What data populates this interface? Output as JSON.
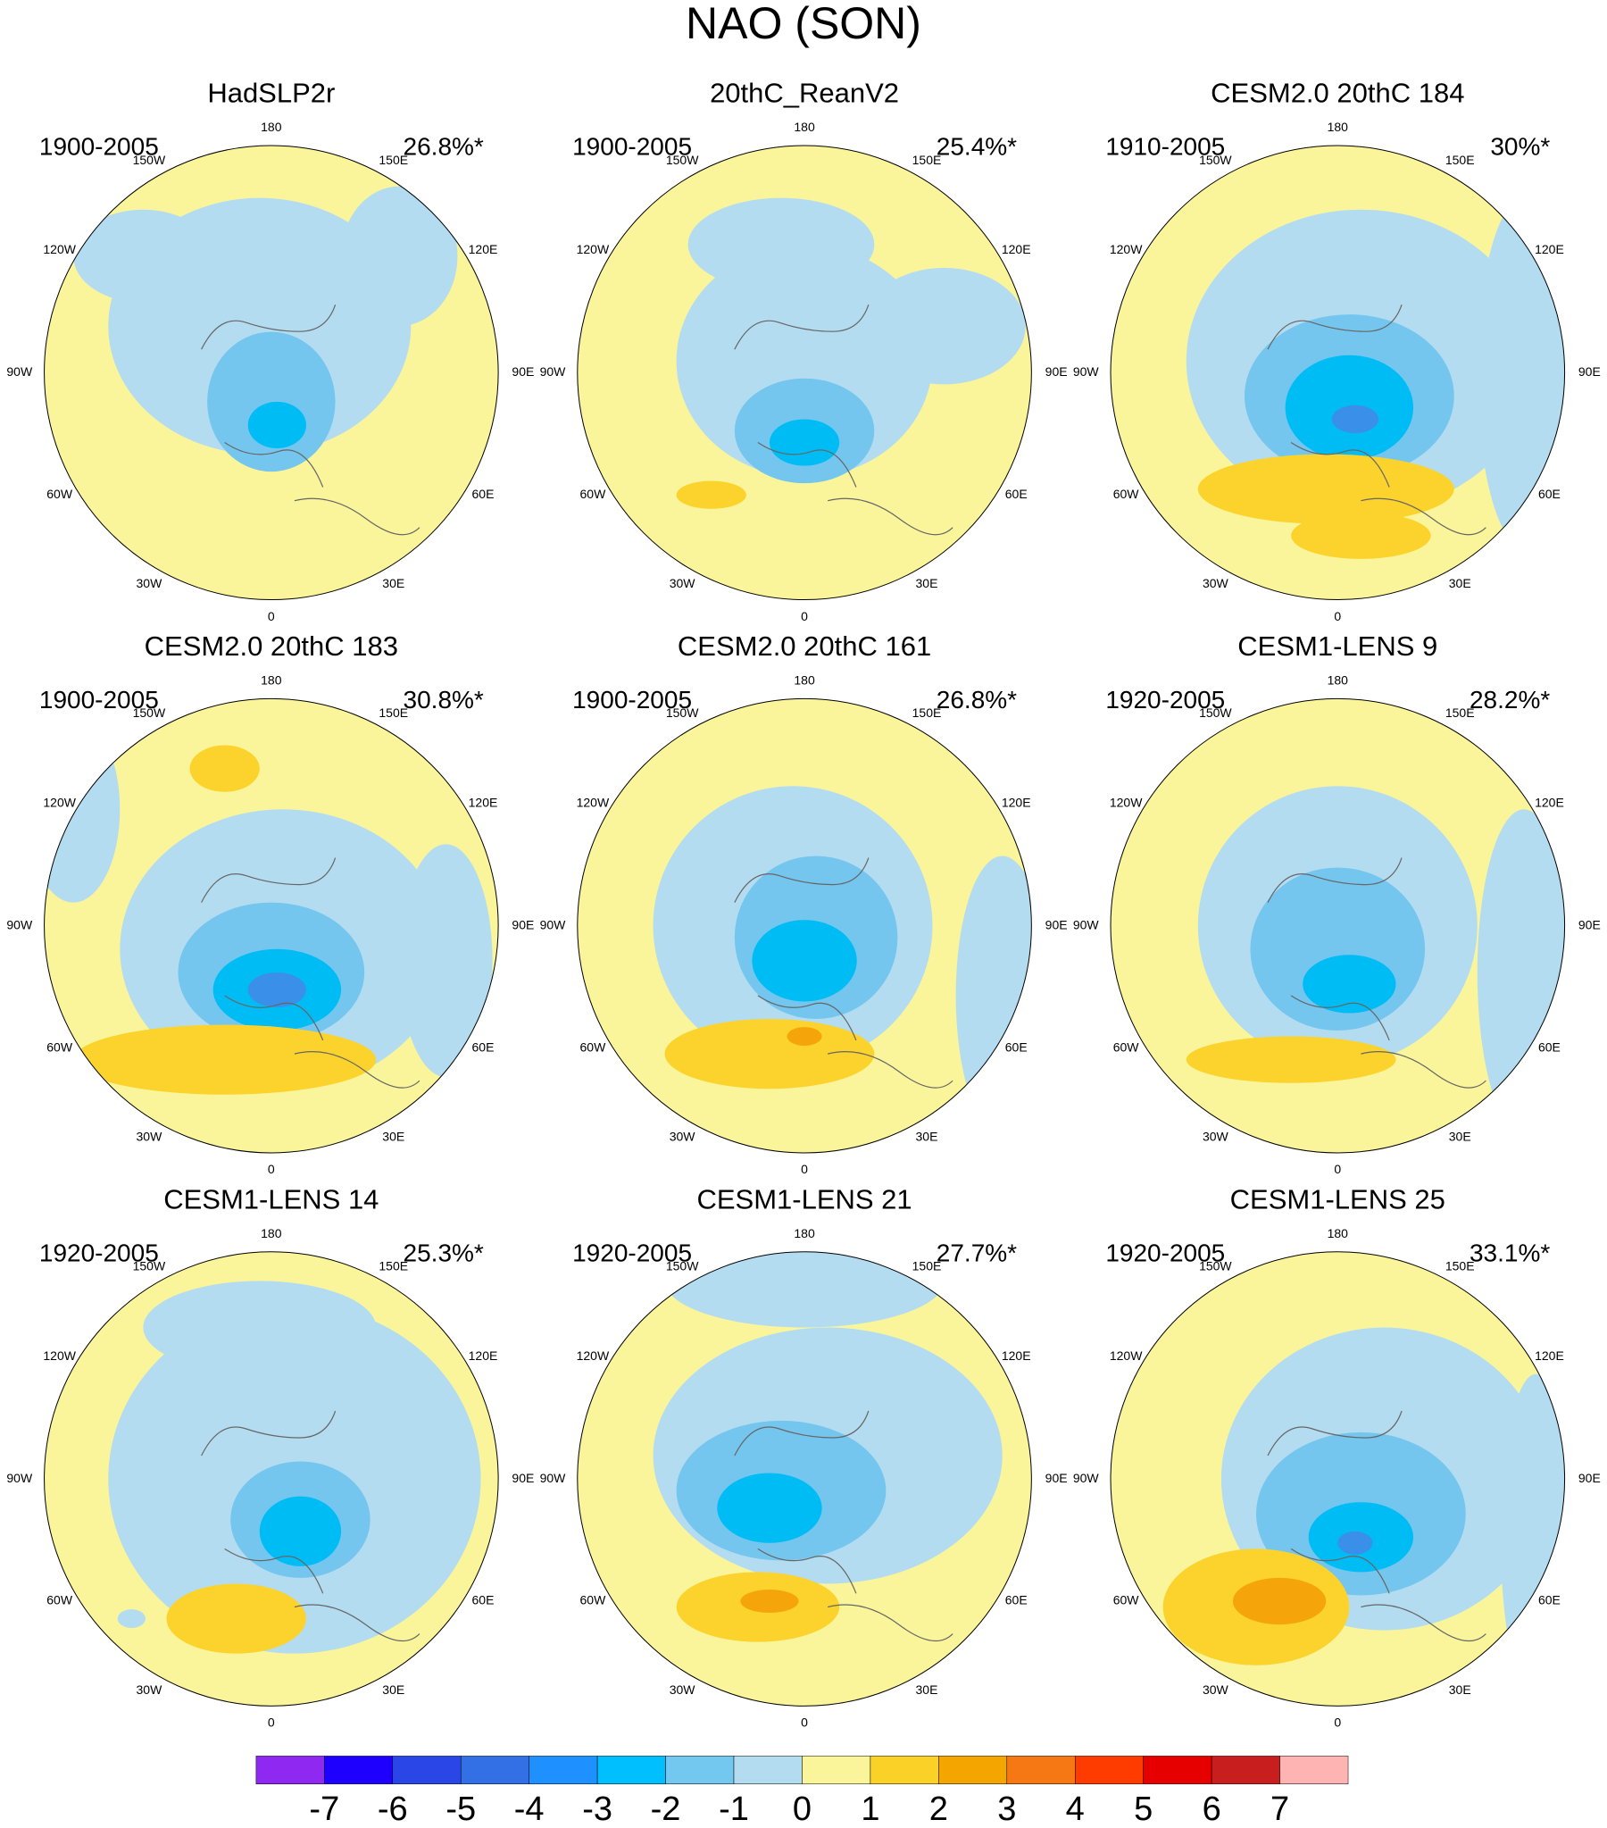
{
  "title": "NAO (SON)",
  "panels": [
    {
      "title": "HadSLP2r",
      "period": "1900-2005",
      "variance": "26.8%*"
    },
    {
      "title": "20thC_ReanV2",
      "period": "1900-2005",
      "variance": "25.4%*"
    },
    {
      "title": "CESM2.0 20thC 184",
      "period": "1910-2005",
      "variance": "30%*"
    },
    {
      "title": "CESM2.0 20thC 183",
      "period": "1900-2005",
      "variance": "30.8%*"
    },
    {
      "title": "CESM2.0 20thC 161",
      "period": "1900-2005",
      "variance": "26.8%*"
    },
    {
      "title": "CESM1-LENS 9",
      "period": "1920-2005",
      "variance": "28.2%*"
    },
    {
      "title": "CESM1-LENS 14",
      "period": "1920-2005",
      "variance": "25.3%*"
    },
    {
      "title": "CESM1-LENS 21",
      "period": "1920-2005",
      "variance": "27.7%*"
    },
    {
      "title": "CESM1-LENS 25",
      "period": "1920-2005",
      "variance": "33.1%*"
    }
  ],
  "longitude_labels": [
    "0",
    "30E",
    "60E",
    "90E",
    "120E",
    "150E",
    "180",
    "150W",
    "120W",
    "90W",
    "60W",
    "30W"
  ],
  "colorbar": {
    "levels": [
      -7,
      -6,
      -5,
      -4,
      -3,
      -2,
      -1,
      0,
      1,
      2,
      3,
      4,
      5,
      6,
      7
    ],
    "colors": [
      "#8f28f0",
      "#1e00ff",
      "#2a46e6",
      "#3370e6",
      "#1e90ff",
      "#00bfff",
      "#73c8f0",
      "#b4dcf0",
      "#faf59b",
      "#fad227",
      "#f5a500",
      "#f57814",
      "#ff3c00",
      "#e60000",
      "#c81e1e",
      "#ffb4b4"
    ]
  }
}
